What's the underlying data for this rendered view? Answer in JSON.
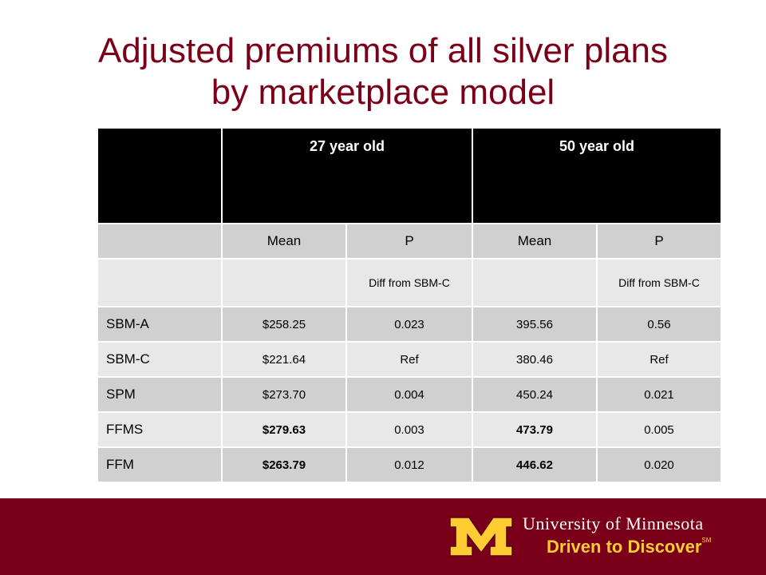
{
  "title": {
    "line1": "Adjusted premiums of all silver plans",
    "line2": "by marketplace model"
  },
  "table": {
    "header": [
      "",
      "27 year old",
      "50 year old"
    ],
    "subheader": [
      "",
      "Mean",
      "P",
      "Mean",
      "P"
    ],
    "note_row": [
      "",
      "",
      "Diff from SBM-C",
      "",
      "Diff from SBM-C"
    ],
    "rows": [
      {
        "cells": [
          "SBM-A",
          "$258.25",
          "0.023",
          "395.56",
          "0.56"
        ]
      },
      {
        "cells": [
          "SBM-C",
          "$221.64",
          "Ref",
          "380.46",
          "Ref"
        ]
      },
      {
        "cells": [
          "SPM",
          "$273.70",
          "0.004",
          "450.24",
          "0.021"
        ]
      },
      {
        "cells": [
          "FFMS",
          "$279.63",
          "0.003",
          "473.79",
          "0.005"
        ]
      },
      {
        "cells": [
          "FFM",
          "$263.79",
          "0.012",
          "446.62",
          "0.020"
        ]
      }
    ]
  },
  "footer": {
    "university": "University of Minnesota",
    "tagline": "Driven to Discover",
    "tagline_mark": "SM",
    "colors": {
      "maroon": "#7a0019",
      "gold": "#ffcc33"
    }
  }
}
